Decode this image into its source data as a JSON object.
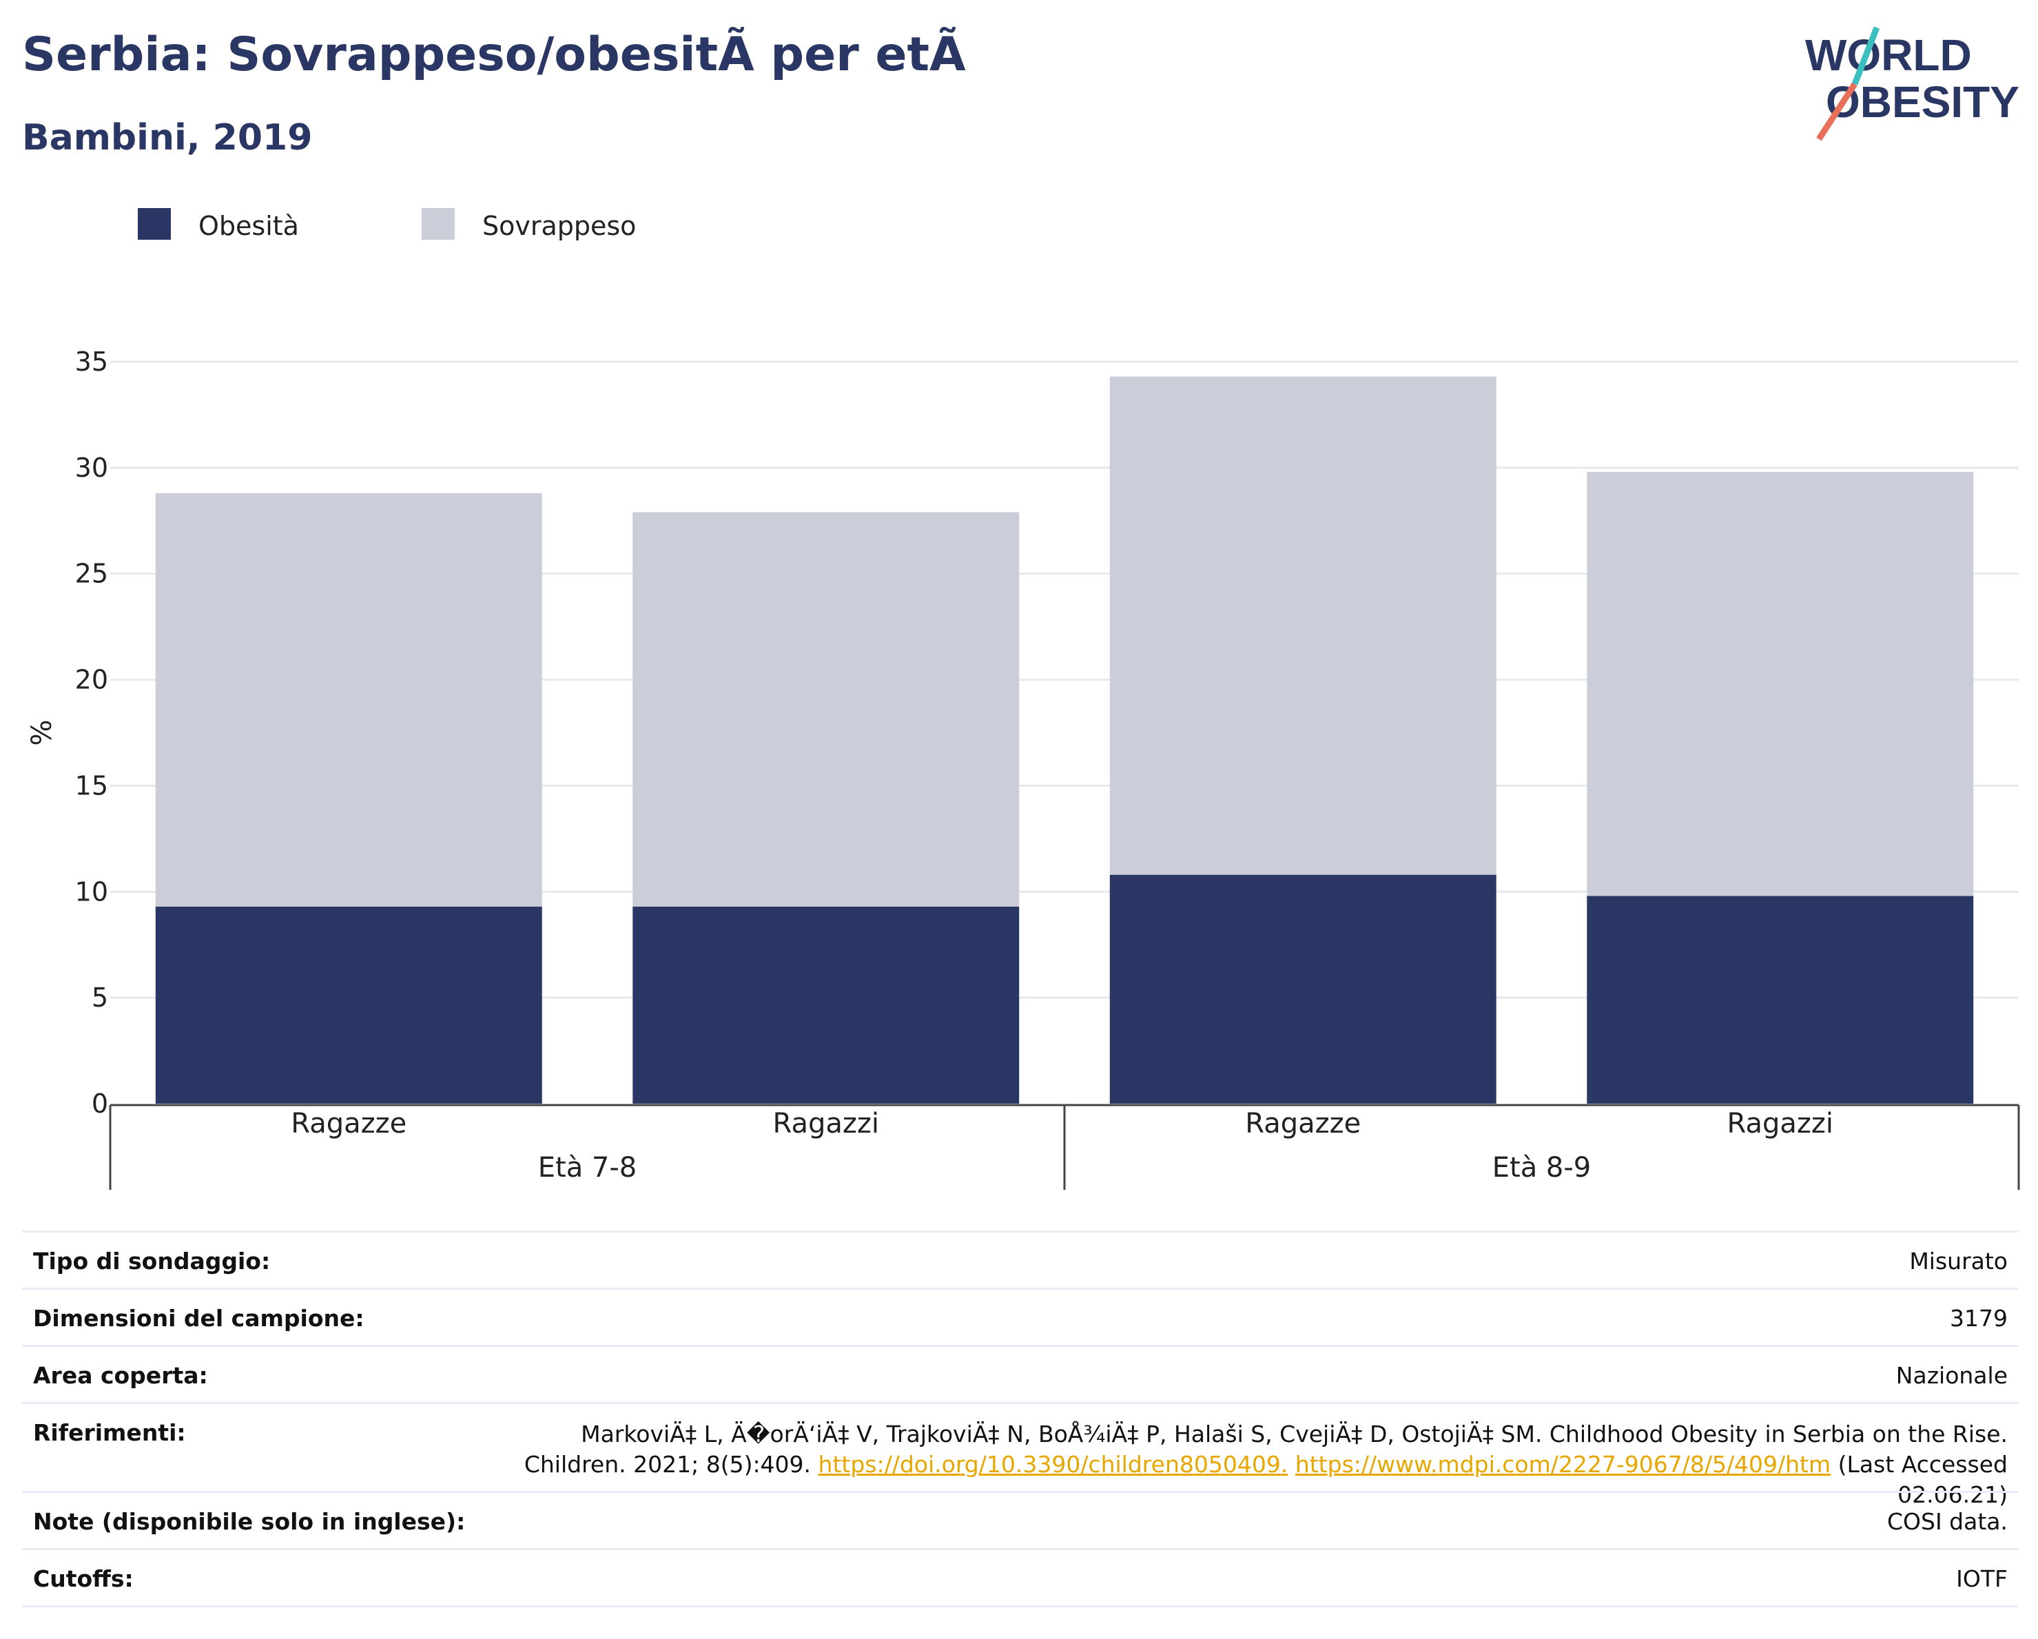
{
  "header": {
    "title": "Serbia: Sovrappeso/obesitÃ  per etÃ",
    "subtitle": "Bambini, 2019"
  },
  "logo": {
    "line1": "WORLD",
    "line2": "OBESITY",
    "colors": {
      "text": "#2a3663",
      "slash_red": "#e8705a",
      "slash_teal": "#3cbfbf"
    }
  },
  "legend": [
    {
      "label": "Obesità",
      "color": "#2a3663"
    },
    {
      "label": "Sovrappeso",
      "color": "#cbcdd9"
    }
  ],
  "chart_data": {
    "type": "bar",
    "stacked": true,
    "categories": [
      "Ragazze",
      "Ragazzi",
      "Ragazze",
      "Ragazzi"
    ],
    "groups": [
      {
        "label": "Età 7-8",
        "categories": [
          0,
          1
        ]
      },
      {
        "label": "Età 8-9",
        "categories": [
          2,
          3
        ]
      }
    ],
    "series": [
      {
        "name": "Obesità",
        "color": "#2a3663",
        "values": [
          9.3,
          9.3,
          10.8,
          9.8
        ]
      },
      {
        "name": "Sovrappeso",
        "color": "#cbcdd9",
        "values": [
          19.5,
          18.6,
          23.5,
          20.0
        ]
      }
    ],
    "ylabel": "%",
    "ylim": [
      0,
      35
    ],
    "yticks": [
      0,
      5,
      10,
      15,
      20,
      25,
      30,
      35
    ],
    "grid": true,
    "legend_position": "top-left"
  },
  "info": {
    "survey_type": {
      "label": "Tipo di sondaggio:",
      "value": "Misurato"
    },
    "sample_size": {
      "label": "Dimensioni del campione:",
      "value": "3179"
    },
    "area": {
      "label": "Area coperta:",
      "value": "Nazionale"
    },
    "references": {
      "label": "Riferimenti:",
      "text": "MarkoviÄ‡ L, Ä�orÄ‘iÄ‡ V, TrajkoviÄ‡ N, BoÅ¾iÄ‡ P, Halaši S, CvejiÄ‡ D, OstojiÄ‡ SM. Childhood Obesity in Serbia on the Rise. Children. 2021; 8(5):409.",
      "link1": "https://doi.org/10.3390/children8050409.",
      "link2": "https://www.mdpi.com/2227-9067/8/5/409/htm",
      "suffix": "(Last Accessed 02.06.21)"
    },
    "notes": {
      "label": "Note (disponibile solo in inglese):",
      "value": "COSI data."
    },
    "cutoffs": {
      "label": "Cutoffs:",
      "value": "IOTF"
    }
  }
}
